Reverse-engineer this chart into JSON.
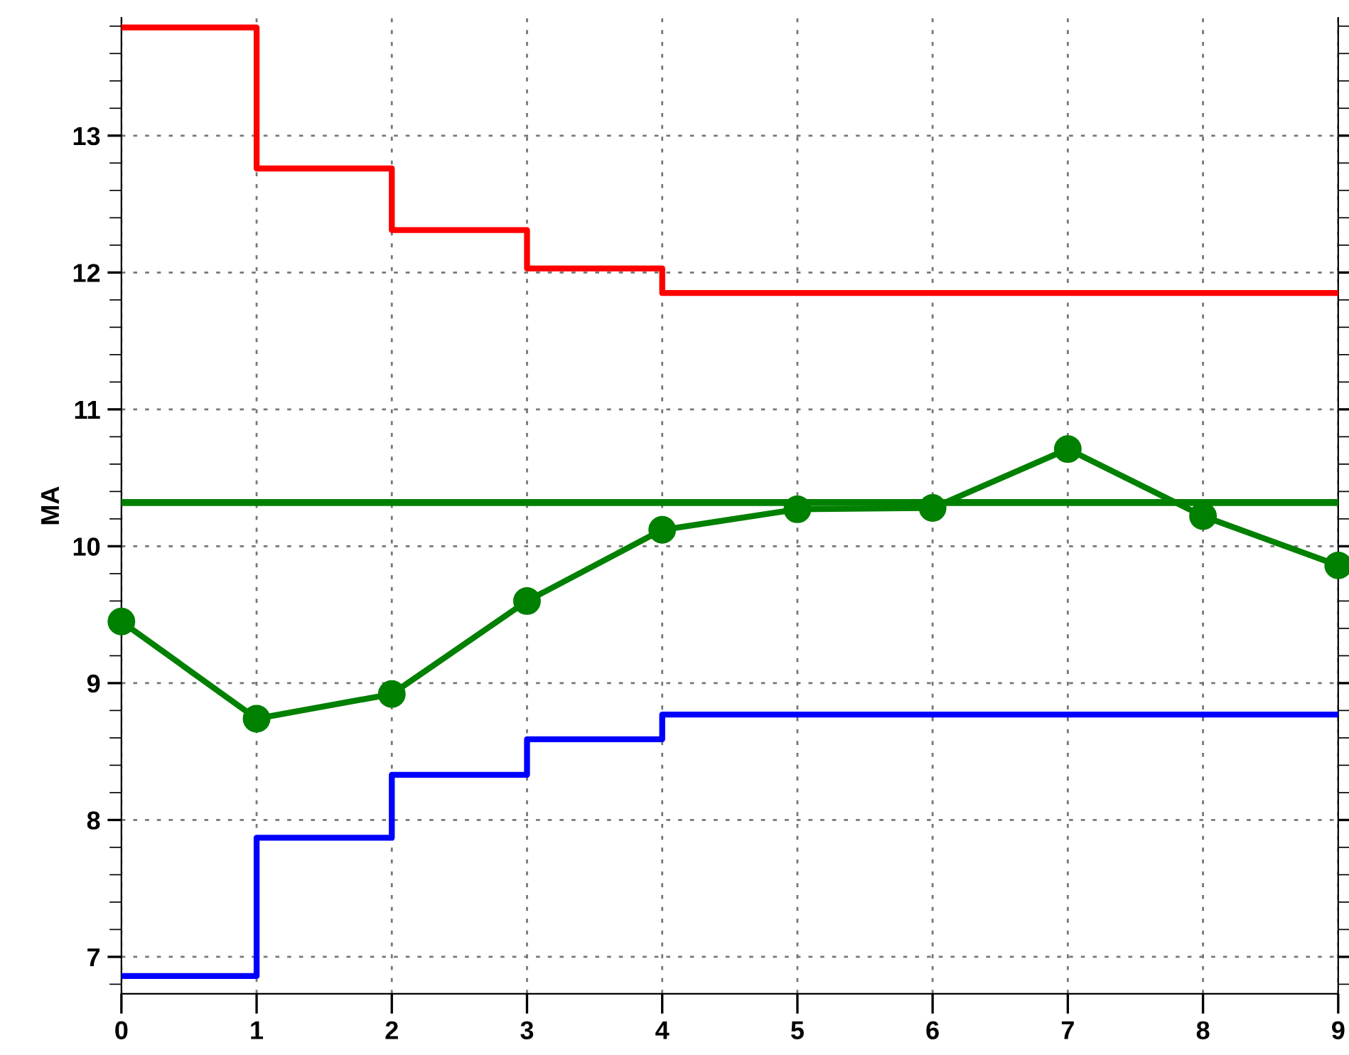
{
  "chart_data": {
    "type": "line",
    "ylabel": "MA",
    "x": [
      0,
      1,
      2,
      3,
      4,
      5,
      6,
      7,
      8,
      9
    ],
    "series": [
      {
        "type": "step",
        "color": "#ff0000",
        "x": [
          0,
          1,
          2,
          3,
          4,
          9
        ],
        "values": [
          13.79,
          12.76,
          12.31,
          12.03,
          11.85,
          11.85
        ],
        "marker": "none"
      },
      {
        "type": "step",
        "color": "#0000ff",
        "x": [
          0,
          1,
          2,
          3,
          4,
          9
        ],
        "values": [
          6.86,
          7.87,
          8.33,
          8.59,
          8.77,
          8.77
        ],
        "marker": "none"
      },
      {
        "color": "#008000",
        "values": [
          9.45,
          8.74,
          8.92,
          9.6,
          10.12,
          10.27,
          10.28,
          10.71,
          10.22,
          9.86
        ],
        "marker": "circle"
      }
    ],
    "ref_lines": [
      {
        "axis": "y",
        "value": 10.32,
        "color": "#008000"
      }
    ],
    "xlim": [
      0,
      9
    ],
    "xticks": [
      0,
      1,
      2,
      3,
      4,
      5,
      6,
      7,
      8,
      9
    ],
    "ylim": [
      6.73,
      13.86
    ],
    "yticks": [
      7,
      8,
      9,
      10,
      11,
      12,
      13
    ],
    "grid": true,
    "legend": false,
    "line_style": "solid"
  }
}
